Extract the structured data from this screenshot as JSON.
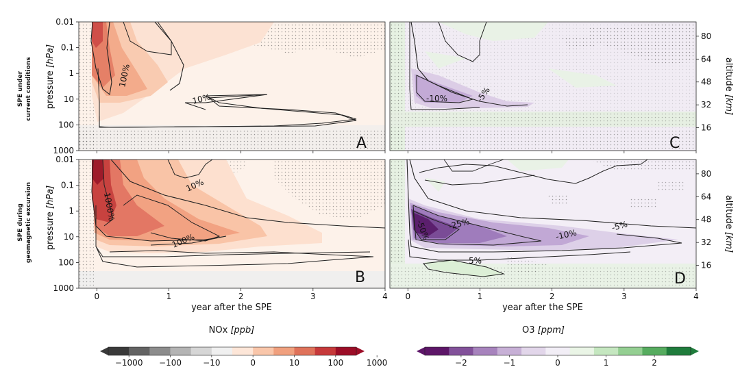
{
  "chart_data": [
    {
      "type": "heatmap",
      "panel": "A",
      "quantity": "NOx",
      "row_label": [
        "SPE under",
        "current conditions"
      ],
      "ylabel": "pressure",
      "yunit": "[hPa]",
      "yticks": [
        "0.01",
        "0.1",
        "1",
        "10",
        "100",
        "1000"
      ],
      "xticks": [
        "0",
        "1",
        "2",
        "3",
        "4"
      ],
      "xlim": [
        -0.25,
        4
      ],
      "contour_labels": [
        {
          "text": "100%",
          "x": 0.2,
          "p": 1.5
        },
        {
          "text": "10%",
          "x": 1.5,
          "p": 12
        }
      ]
    },
    {
      "type": "heatmap",
      "panel": "B",
      "quantity": "NOx",
      "row_label": [
        "SPE during",
        "geomagnetic excursion"
      ],
      "ylabel": "pressure",
      "yunit": "[hPa]",
      "yticks": [
        "0.01",
        "0.1",
        "1",
        "10",
        "100",
        "1000"
      ],
      "xticks": [
        "0",
        "1",
        "2",
        "3",
        "4"
      ],
      "xlabel": "year after the SPE",
      "xlim": [
        -0.25,
        4
      ],
      "contour_labels": [
        {
          "text": "1000%",
          "x": 0.14,
          "p": 0.45
        },
        {
          "text": "100%",
          "x": 1.25,
          "p": 9
        },
        {
          "text": "10%",
          "x": 1.4,
          "p": 0.08
        }
      ]
    },
    {
      "type": "heatmap",
      "panel": "C",
      "quantity": "O3",
      "ylabel": "altitude",
      "yunit": "[km]",
      "yticks": [
        "16",
        "32",
        "48",
        "64",
        "80"
      ],
      "xticks": [
        "0",
        "1",
        "2",
        "3",
        "4"
      ],
      "xlim": [
        -0.25,
        4
      ],
      "contour_labels": [
        {
          "text": "-10%",
          "x": 0.4,
          "p": 14
        },
        {
          "text": "-5%",
          "x": 1.0,
          "p": 12
        }
      ]
    },
    {
      "type": "heatmap",
      "panel": "D",
      "quantity": "O3",
      "ylabel": "altitude",
      "yunit": "[km]",
      "yticks": [
        "16",
        "32",
        "48",
        "64",
        "80"
      ],
      "xticks": [
        "0",
        "1",
        "2",
        "3",
        "4"
      ],
      "xlabel": "year after the SPE",
      "xlim": [
        -0.25,
        4
      ],
      "contour_labels": [
        {
          "text": "-50%",
          "x": 0.18,
          "p": 5
        },
        {
          "text": "-25%",
          "x": 0.75,
          "p": 4.5
        },
        {
          "text": "-10%",
          "x": 2.2,
          "p": 7
        },
        {
          "text": "-5%",
          "x": 2.95,
          "p": 4.8
        },
        {
          "text": "5%",
          "x": 0.95,
          "p": 150
        }
      ]
    }
  ],
  "colorbars": [
    {
      "label": "NOx",
      "unit": "[ppb]",
      "ticks": [
        "−1000",
        "−100",
        "−10",
        "0",
        "10",
        "100",
        "1000"
      ],
      "colors": [
        "#3a3a3a",
        "#636363",
        "#8c8c8c",
        "#b4b4b4",
        "#d6d6d6",
        "#f0f0f0",
        "#fde6d8",
        "#f9c6aa",
        "#f0a07e",
        "#df725a",
        "#c6393a",
        "#9c0d27"
      ]
    },
    {
      "label": "O3",
      "unit": "[ppm]",
      "ticks": [
        "−2",
        "−1",
        "0",
        "1",
        "2"
      ],
      "colors": [
        "#5d1668",
        "#82519a",
        "#a783bd",
        "#c7b0d6",
        "#e2d6ea",
        "#f2eef6",
        "#eaf5e6",
        "#c5e7c0",
        "#94cf92",
        "#56ac5f",
        "#1f7c3c"
      ]
    }
  ]
}
